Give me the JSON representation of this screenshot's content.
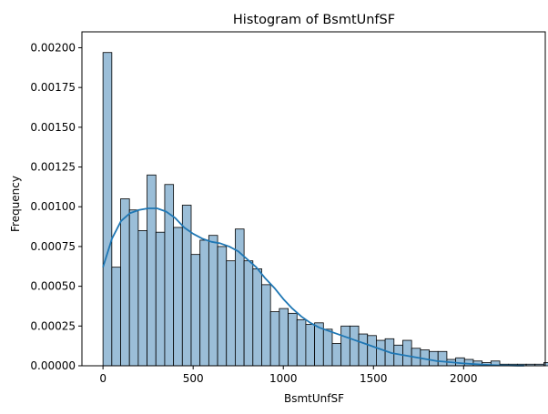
{
  "chart_data": {
    "type": "bar",
    "title": "Histogram of BsmtUnfSF",
    "xlabel": "BsmtUnfSF",
    "ylabel": "Frequency",
    "xlim": [
      -116.8,
      2452.8
    ],
    "ylim": [
      0,
      0.0021
    ],
    "xticks": [
      0,
      500,
      1000,
      1500,
      2000
    ],
    "yticks": [
      "0.00000",
      "0.00025",
      "0.00050",
      "0.00075",
      "0.00100",
      "0.00125",
      "0.00150",
      "0.00175",
      "0.00200"
    ],
    "grid": false,
    "bin_width": 48.9,
    "bin_start": 0,
    "series": [
      {
        "kind": "histogram",
        "values": [
          0.00197,
          0.00062,
          0.00105,
          0.00098,
          0.00085,
          0.0012,
          0.00084,
          0.00114,
          0.00087,
          0.00101,
          0.0007,
          0.00079,
          0.00082,
          0.00075,
          0.00066,
          0.00086,
          0.00066,
          0.00061,
          0.00051,
          0.00034,
          0.00036,
          0.00033,
          0.00029,
          0.00026,
          0.00027,
          0.00023,
          0.00014,
          0.00025,
          0.00025,
          0.0002,
          0.00019,
          0.00016,
          0.00017,
          0.00013,
          0.00016,
          0.00011,
          0.0001,
          9e-05,
          9e-05,
          4e-05,
          5e-05,
          4e-05,
          3e-05,
          2e-05,
          3e-05,
          1e-05,
          1e-05,
          1e-05,
          1e-05,
          1e-05,
          2e-05
        ]
      },
      {
        "kind": "kde",
        "x": [
          0,
          50,
          100,
          150,
          200,
          250,
          300,
          350,
          400,
          450,
          500,
          550,
          600,
          650,
          700,
          750,
          800,
          850,
          900,
          950,
          1000,
          1050,
          1100,
          1150,
          1200,
          1250,
          1300,
          1350,
          1400,
          1450,
          1500,
          1550,
          1600,
          1650,
          1700,
          1750,
          1800,
          1850,
          1900,
          1950,
          2000,
          2050,
          2100,
          2150,
          2200,
          2250,
          2300,
          2336
        ],
        "y": [
          0.00062,
          0.0008,
          0.00091,
          0.00096,
          0.00098,
          0.00099,
          0.00099,
          0.00097,
          0.00093,
          0.00087,
          0.00083,
          0.0008,
          0.00078,
          0.00077,
          0.00075,
          0.00072,
          0.00067,
          0.00062,
          0.00055,
          0.00049,
          0.00042,
          0.00036,
          0.00031,
          0.00027,
          0.00024,
          0.00022,
          0.0002,
          0.00018,
          0.00016,
          0.00014,
          0.00012,
          0.0001,
          8e-05,
          7e-05,
          6e-05,
          5e-05,
          4e-05,
          3e-05,
          2.5e-05,
          2e-05,
          1.5e-05,
          1.1e-05,
          8e-06,
          5e-06,
          3e-06,
          2e-06,
          1e-06,
          1e-06
        ]
      }
    ],
    "colors": {
      "bar_fill": "#9bbed8",
      "bar_edge": "#000000",
      "kde_line": "#1f77b4",
      "axes": "#000000"
    }
  }
}
